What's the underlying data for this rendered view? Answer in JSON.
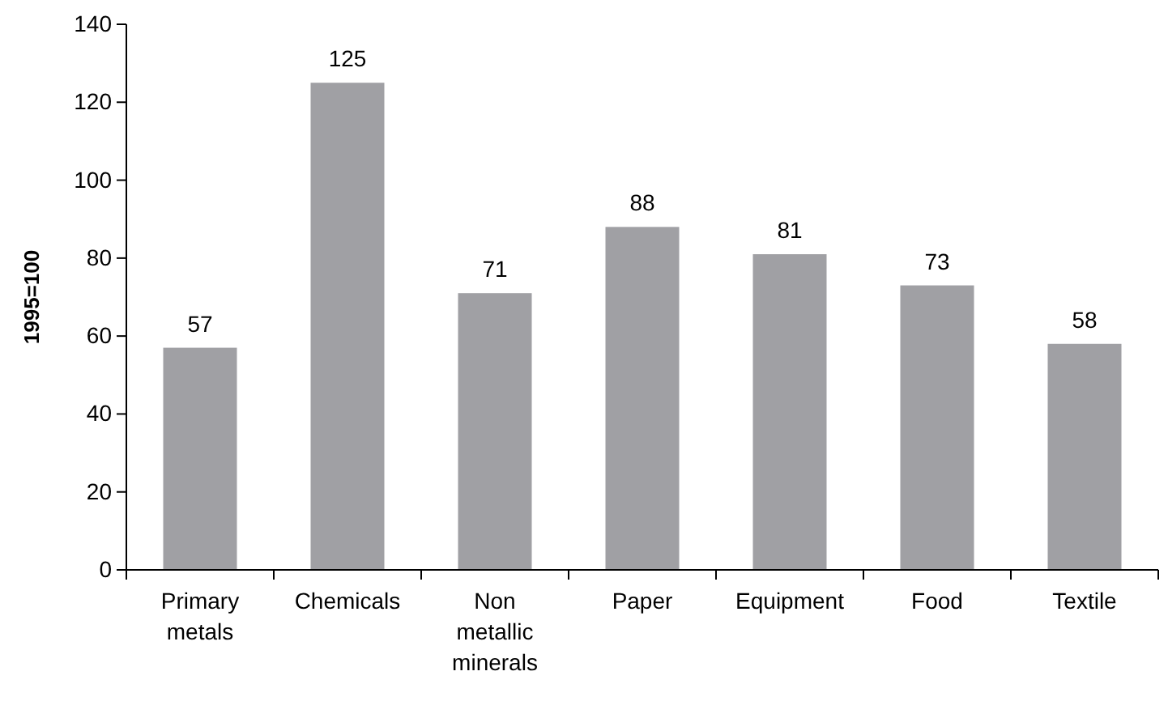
{
  "chart_data": {
    "type": "bar",
    "ylabel": "1995=100",
    "categories": [
      "Primary metals",
      "Chemicals",
      "Non metallic minerals",
      "Paper",
      "Equipment",
      "Food",
      "Textile"
    ],
    "values": [
      57,
      125,
      71,
      88,
      81,
      73,
      58
    ],
    "color": "#a0a0a4",
    "ylim": [
      0,
      140
    ],
    "yticks": [
      0,
      20,
      40,
      60,
      80,
      100,
      120,
      140
    ],
    "data_labels": true,
    "grid": false
  }
}
